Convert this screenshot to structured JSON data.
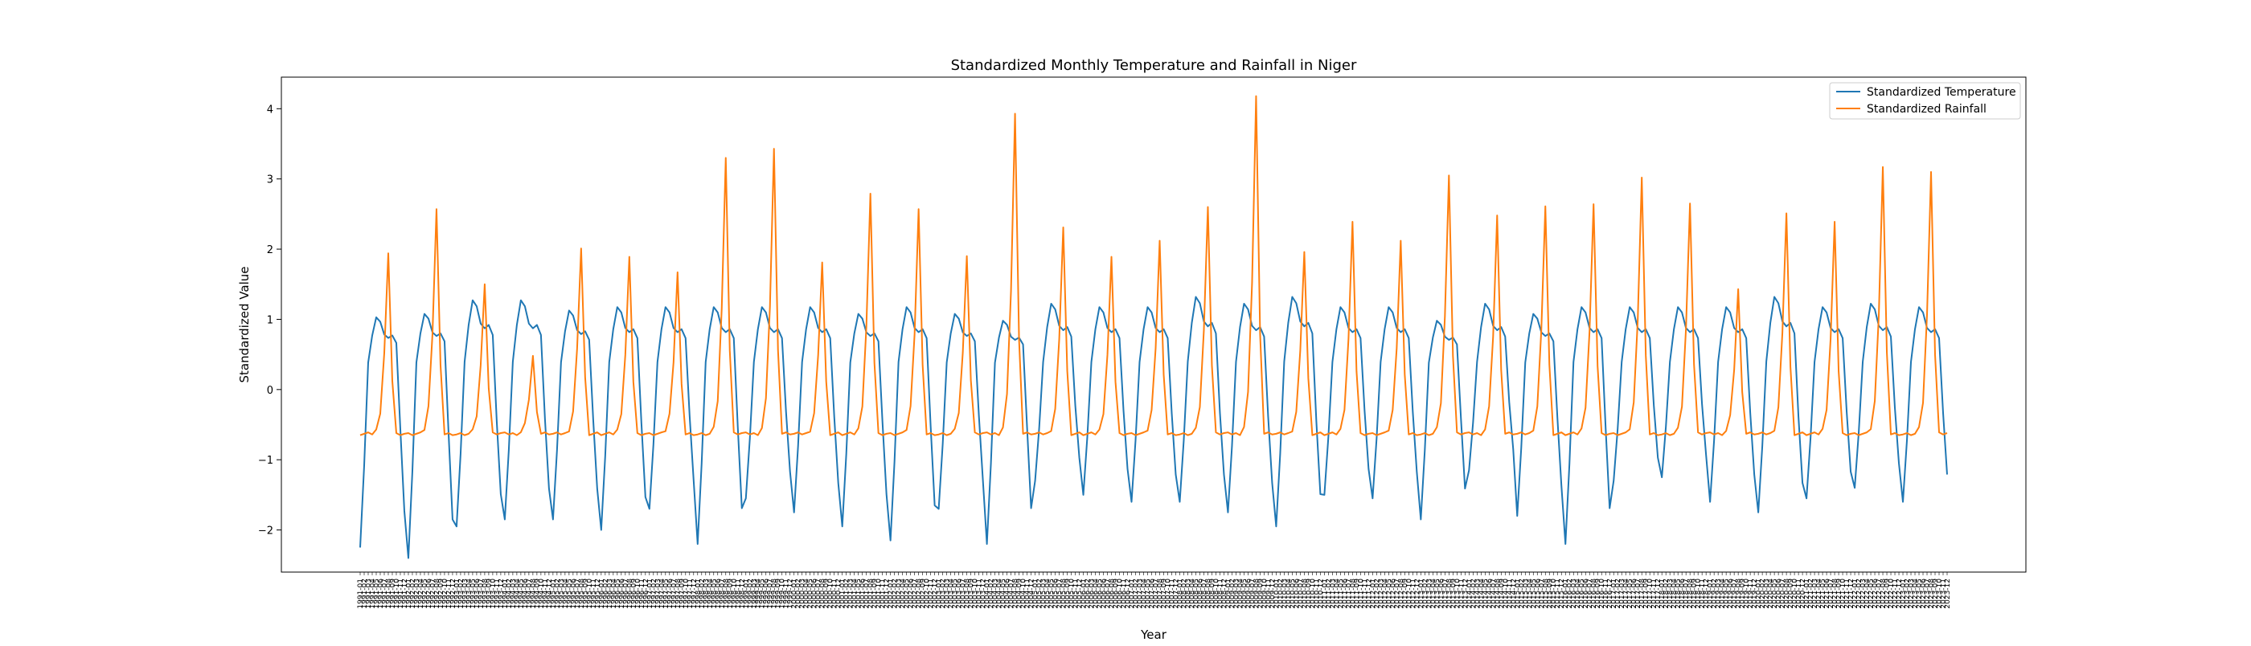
{
  "chart_data": {
    "type": "line",
    "title": "Standardized Monthly Temperature and Rainfall in Niger",
    "xlabel": "Year",
    "ylabel": "Standardized Value",
    "ylim": [
      -2.6,
      4.45
    ],
    "yticks": [
      -2,
      -1,
      0,
      1,
      2,
      3,
      4
    ],
    "grid": false,
    "legend_position": "top-right",
    "x_start_year": 1991,
    "n_years": 33,
    "months_per_year": 12,
    "series": [
      {
        "name": "Standardized Temperature",
        "color": "#1f77b4",
        "annual_min": [
          -2.25,
          -2.4,
          -1.95,
          -1.85,
          -1.85,
          -2.0,
          -1.7,
          -2.2,
          -1.55,
          -1.75,
          -1.95,
          -2.15,
          -1.7,
          -2.2,
          -1.3,
          -1.5,
          -1.6,
          -1.6,
          -1.75,
          -1.95,
          -1.5,
          -1.55,
          -1.85,
          -1.15,
          -1.8,
          -2.2,
          -1.3,
          -1.25,
          -1.6,
          -1.75,
          -1.55,
          -1.4,
          -1.6
        ],
        "annual_max": [
          1.05,
          1.1,
          1.3,
          1.3,
          1.15,
          1.2,
          1.2,
          1.2,
          1.2,
          1.2,
          1.1,
          1.2,
          1.1,
          1.0,
          1.25,
          1.2,
          1.2,
          1.35,
          1.25,
          1.35,
          1.2,
          1.2,
          1.0,
          1.25,
          1.1,
          1.2,
          1.2,
          1.2,
          1.2,
          1.35,
          1.2,
          1.25,
          1.2
        ]
      },
      {
        "name": "Standardized Rainfall",
        "color": "#ff7f0e",
        "baseline": -0.65,
        "annual_peak": [
          1.9,
          2.55,
          1.5,
          0.45,
          2.0,
          1.85,
          1.65,
          3.3,
          3.4,
          1.8,
          2.75,
          2.55,
          1.9,
          3.9,
          2.3,
          1.85,
          2.1,
          2.6,
          4.15,
          1.95,
          2.35,
          2.1,
          3.05,
          2.45,
          2.6,
          2.6,
          3.0,
          2.65,
          1.4,
          2.5,
          2.35,
          3.15,
          3.1
        ]
      }
    ]
  }
}
